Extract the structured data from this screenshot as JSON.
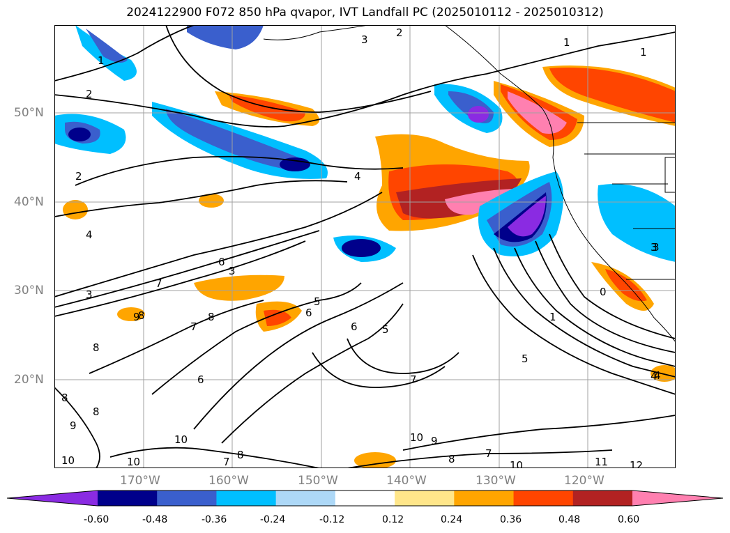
{
  "map": {
    "title": "2024122900 F072 850 hPa qvapor, IVT Landfall PC (2025010112 - 2025010312)",
    "lat_labels": [
      "50°N",
      "40°N",
      "30°N",
      "20°N"
    ],
    "lon_labels": [
      "170°W",
      "160°W",
      "150°W",
      "140°W",
      "130°W",
      "120°W"
    ],
    "contour_labels": [
      "2",
      "3",
      "1",
      "1",
      "2",
      "4",
      "2",
      "4",
      "3",
      "6",
      "6",
      "7",
      "3",
      "8",
      "8",
      "8",
      "7",
      "5",
      "6",
      "6",
      "5",
      "4",
      "3",
      "9",
      "8",
      "8",
      "9",
      "10",
      "10",
      "10",
      "7",
      "8",
      "10",
      "9",
      "8",
      "7",
      "10",
      "11",
      "12",
      "4",
      "5",
      "7",
      "1",
      "0",
      "3",
      "1"
    ]
  },
  "colorbar": {
    "tick_labels": [
      "-0.60",
      "-0.48",
      "-0.36",
      "-0.24",
      "-0.12",
      "0.12",
      "0.24",
      "0.36",
      "0.48",
      "0.60"
    ],
    "colors": [
      "#8a2be2",
      "#00008b",
      "#3a5fcd",
      "#00bfff",
      "#add8f7",
      "#ffffff",
      "#ffe68a",
      "#ffa500",
      "#ff4500",
      "#b22222",
      "#ff80b0"
    ]
  }
}
